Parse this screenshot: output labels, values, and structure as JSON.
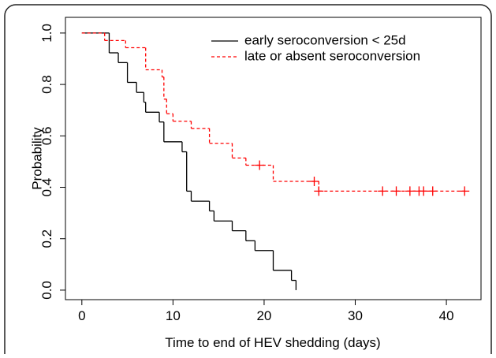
{
  "chart_data": {
    "type": "survival",
    "xlabel": "Time to end of HEV shedding (days)",
    "ylabel": "Probability",
    "xlim": [
      -1.8,
      43.8
    ],
    "ylim": [
      -0.037,
      1.061
    ],
    "xticks": [
      0,
      10,
      20,
      30,
      40
    ],
    "yticks": [
      {
        "value": 0,
        "label": "0.0"
      },
      {
        "value": 0.2,
        "label": "0.2"
      },
      {
        "value": 0.4,
        "label": "0.4"
      },
      {
        "value": 0.6,
        "label": "0.6"
      },
      {
        "value": 0.8,
        "label": "0.8"
      },
      {
        "value": 1,
        "label": "1.0"
      }
    ],
    "legend": "top-right",
    "series": [
      {
        "name": "early seroconversion < 25d",
        "color": "#000000",
        "dash": false,
        "x": [
          0,
          3,
          4,
          5,
          6,
          6.8,
          7,
          8.5,
          9,
          11,
          11.5,
          12,
          14,
          14.5,
          16.5,
          18,
          19,
          21,
          23,
          23.5
        ],
        "values": [
          1,
          0.923,
          0.885,
          0.808,
          0.769,
          0.731,
          0.692,
          0.654,
          0.577,
          0.538,
          0.385,
          0.346,
          0.308,
          0.269,
          0.231,
          0.192,
          0.154,
          0.077,
          0.038,
          0
        ]
      },
      {
        "name": "late or absent seroconversion",
        "color": "#ff0000",
        "dash": true,
        "x": [
          0,
          2.5,
          4.8,
          7,
          8.8,
          9,
          9.3,
          10,
          12,
          14,
          16.5,
          18,
          21,
          26,
          42
        ],
        "values": [
          1,
          0.971,
          0.943,
          0.857,
          0.829,
          0.743,
          0.686,
          0.657,
          0.629,
          0.571,
          0.514,
          0.486,
          0.423,
          0.385,
          0.385
        ],
        "censored": {
          "x": [
            19.5,
            25.5,
            26,
            33,
            34.5,
            36,
            37,
            37.5,
            38.5,
            42
          ],
          "values": [
            0.486,
            0.423,
            0.385,
            0.385,
            0.385,
            0.385,
            0.385,
            0.385,
            0.385,
            0.385
          ]
        }
      }
    ]
  }
}
